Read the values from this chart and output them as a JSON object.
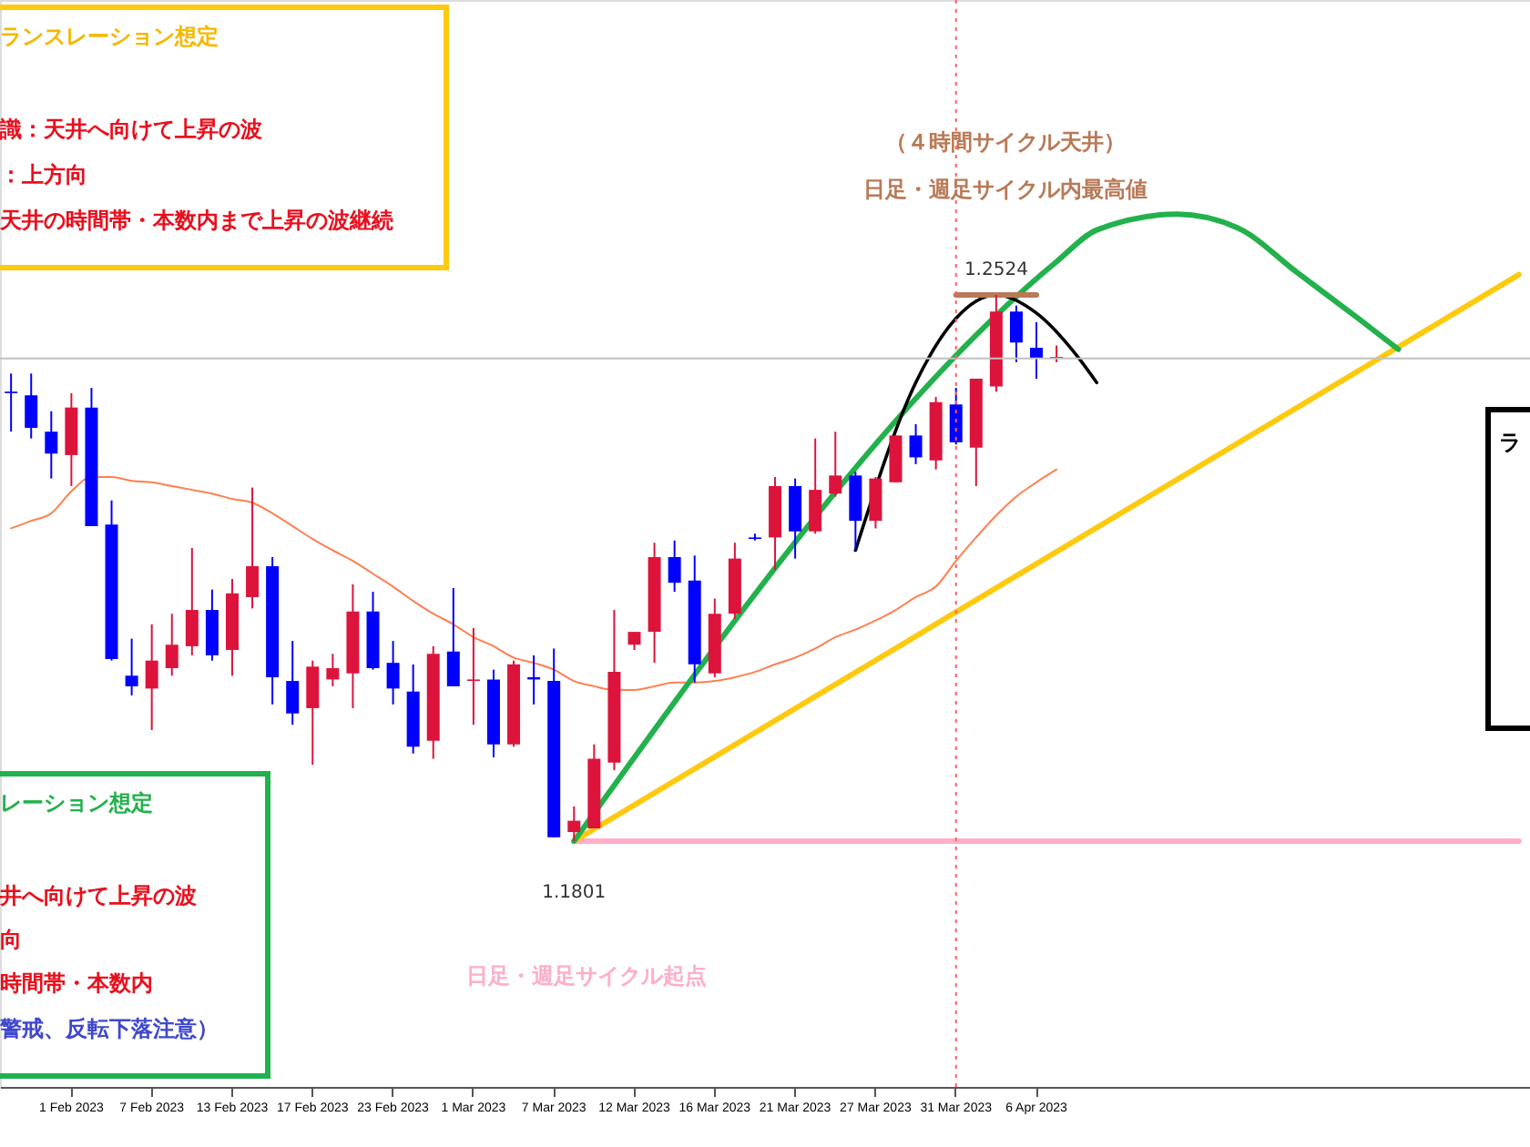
{
  "chart_data": {
    "type": "candlestick",
    "categories": [
      null,
      null,
      null,
      "1 Feb 2023",
      null,
      null,
      null,
      "7 Feb 2023",
      null,
      null,
      null,
      "13 Feb 2023",
      null,
      null,
      null,
      "17 Feb 2023",
      null,
      null,
      null,
      "23 Feb 2023",
      null,
      null,
      null,
      "1 Mar 2023",
      null,
      null,
      null,
      "7 Mar 2023",
      null,
      null,
      null,
      "12 Mar 2023",
      null,
      null,
      null,
      "16 Mar 2023",
      null,
      null,
      null,
      "21 Mar 2023",
      null,
      null,
      null,
      "27 Mar 2023",
      null,
      null,
      null,
      "31 Mar 2023",
      null,
      null,
      null,
      "6 Apr 2023",
      null,
      null,
      null,
      null,
      null,
      null,
      null,
      null,
      null,
      null,
      null,
      null,
      null,
      null,
      null,
      null,
      null,
      null,
      null,
      null,
      null,
      null,
      null,
      null
    ],
    "ohlc": [
      [
        1.2396,
        1.242,
        1.2343,
        1.2394
      ],
      [
        1.2391,
        1.242,
        1.2334,
        1.2348
      ],
      [
        1.2343,
        1.237,
        1.2281,
        1.2314
      ],
      [
        1.2312,
        1.2394,
        1.2271,
        1.2375
      ],
      [
        1.2375,
        1.2401,
        1.2218,
        1.2218
      ],
      [
        1.222,
        1.2252,
        1.204,
        1.2042
      ],
      [
        1.202,
        1.2069,
        1.1994,
        1.2006
      ],
      [
        1.2003,
        1.2088,
        1.1948,
        1.204
      ],
      [
        1.203,
        1.2102,
        1.202,
        1.2061
      ],
      [
        1.2059,
        1.2189,
        1.2047,
        1.2107
      ],
      [
        1.2107,
        1.2134,
        1.204,
        1.2047
      ],
      [
        1.2054,
        1.2148,
        1.202,
        1.2129
      ],
      [
        1.2124,
        1.2269,
        1.2109,
        1.2165
      ],
      [
        1.2165,
        1.2177,
        1.1982,
        1.2018
      ],
      [
        1.2013,
        1.2066,
        1.1955,
        1.197
      ],
      [
        1.1977,
        1.204,
        1.1902,
        1.2032
      ],
      [
        1.2015,
        1.2049,
        1.2006,
        1.203
      ],
      [
        1.2023,
        1.2141,
        1.1977,
        1.2105
      ],
      [
        1.2105,
        1.2131,
        1.2028,
        1.203
      ],
      [
        1.2037,
        1.2066,
        1.1982,
        1.2003
      ],
      [
        1.1999,
        1.2035,
        1.1917,
        1.1926
      ],
      [
        1.1934,
        1.2059,
        1.191,
        1.2049
      ],
      [
        1.2052,
        1.2136,
        1.2006,
        1.2006
      ],
      [
        1.2013,
        1.2083,
        1.1955,
        1.2015
      ],
      [
        1.2015,
        1.2028,
        1.1912,
        1.1929
      ],
      [
        1.1929,
        1.204,
        1.1926,
        1.2035
      ],
      [
        1.2018,
        1.2047,
        1.1982,
        1.2015
      ],
      [
        1.2013,
        1.2056,
        1.1806,
        1.1806
      ],
      [
        1.1813,
        1.1847,
        1.1801,
        1.1828
      ],
      [
        1.1818,
        1.1929,
        1.1818,
        1.191
      ],
      [
        1.1905,
        1.2107,
        1.1895,
        1.2025
      ],
      [
        1.2061,
        1.2078,
        1.2054,
        1.2078
      ],
      [
        1.2078,
        1.2196,
        1.2037,
        1.2177
      ],
      [
        1.2177,
        1.2199,
        1.2131,
        1.2143
      ],
      [
        1.2146,
        1.2179,
        1.2011,
        1.2035
      ],
      [
        1.2023,
        1.2122,
        1.2018,
        1.2102
      ],
      [
        1.2102,
        1.2196,
        1.2095,
        1.2175
      ],
      [
        1.2203,
        1.2208,
        1.2199,
        1.2201
      ],
      [
        1.2203,
        1.2283,
        1.216,
        1.2271
      ],
      [
        1.2271,
        1.2281,
        1.2175,
        1.2211
      ],
      [
        1.2211,
        1.2334,
        1.2208,
        1.2266
      ],
      [
        1.2261,
        1.2343,
        1.2257,
        1.2285
      ],
      [
        1.2285,
        1.229,
        1.2186,
        1.2225
      ],
      [
        1.2225,
        1.2283,
        1.2215,
        1.2281
      ],
      [
        1.2276,
        1.2338,
        1.2276,
        1.2338
      ],
      [
        1.2338,
        1.2353,
        1.23,
        1.2309
      ],
      [
        1.2305,
        1.2389,
        1.2293,
        1.2382
      ],
      [
        1.2379,
        1.2401,
        1.2326,
        1.2329
      ],
      [
        1.2322,
        1.2413,
        1.2271,
        1.2413
      ],
      [
        1.2403,
        1.2524,
        1.2396,
        1.2502
      ],
      [
        1.2502,
        1.251,
        1.2435,
        1.2461
      ],
      [
        1.2454,
        1.2488,
        1.2413,
        1.244
      ],
      [
        1.244,
        1.2457,
        1.2435,
        1.2442
      ],
      null,
      null,
      null,
      null,
      null,
      null,
      null,
      null,
      null,
      null,
      null,
      null,
      null,
      null,
      null,
      null,
      null,
      null,
      null,
      null,
      null,
      null,
      null
    ],
    "colors": [
      "#0000ff",
      "#0000ff",
      "#0000ff",
      "#dc143c",
      "#0000ff",
      "#0000ff",
      "#0000ff",
      "#dc143c",
      "#dc143c",
      "#dc143c",
      "#0000ff",
      "#dc143c",
      "#dc143c",
      "#0000ff",
      "#0000ff",
      "#dc143c",
      "#dc143c",
      "#dc143c",
      "#0000ff",
      "#0000ff",
      "#0000ff",
      "#dc143c",
      "#0000ff",
      "#dc143c",
      "#0000ff",
      "#dc143c",
      "#0000ff",
      "#0000ff",
      "#dc143c",
      "#dc143c",
      "#dc143c",
      "#dc143c",
      "#dc143c",
      "#0000ff",
      "#0000ff",
      "#dc143c",
      "#dc143c",
      "#0000ff",
      "#dc143c",
      "#0000ff",
      "#dc143c",
      "#dc143c",
      "#0000ff",
      "#dc143c",
      "#dc143c",
      "#0000ff",
      "#dc143c",
      "#0000ff",
      "#dc143c",
      "#dc143c",
      "#0000ff",
      "#0000ff",
      "#dc143c",
      null,
      null,
      null,
      null,
      null,
      null,
      null,
      null,
      null,
      null,
      null,
      null,
      null,
      null,
      null,
      null,
      null,
      null,
      null,
      null,
      null,
      null,
      null
    ],
    "series": [
      {
        "type": "line",
        "color": "#ff7f50",
        "values": [
          1.2215,
          1.2225,
          1.2235,
          1.2264,
          1.2283,
          1.2283,
          1.2278,
          1.2276,
          1.2271,
          1.2266,
          1.2261,
          1.2254,
          1.2249,
          1.2235,
          1.2218,
          1.2201,
          1.2186,
          1.2172,
          1.2155,
          1.2138,
          1.2119,
          1.2102,
          1.2088,
          1.2071,
          1.2059,
          1.2044,
          1.2037,
          1.2028,
          1.2013,
          1.2006,
          1.2001,
          1.2001,
          1.2006,
          1.2011,
          1.2011,
          1.2013,
          1.2018,
          1.2025,
          1.2035,
          1.2044,
          1.2056,
          1.2071,
          1.2081,
          1.2093,
          1.2107,
          1.2124,
          1.2138,
          1.2172,
          1.2203,
          1.2232,
          1.2257,
          1.2276,
          1.2293,
          null,
          null,
          null,
          null,
          null,
          null,
          null,
          null,
          null,
          null,
          null,
          null,
          null,
          null,
          null,
          null,
          null,
          null,
          null,
          null,
          null,
          null,
          null
        ]
      },
      {
        "type": "line",
        "color": "#ffaec9",
        "values": [
          null,
          null,
          null,
          null,
          null,
          null,
          null,
          null,
          null,
          null,
          null,
          null,
          null,
          null,
          null,
          null,
          null,
          null,
          null,
          null,
          null,
          null,
          null,
          null,
          null,
          null,
          null,
          null,
          1.1801,
          null,
          null,
          null,
          null,
          null,
          null,
          null,
          null,
          null,
          null,
          null,
          null,
          null,
          null,
          null,
          null,
          null,
          null,
          null,
          null,
          null,
          null,
          null,
          null,
          null,
          null,
          null,
          null,
          null,
          null,
          null,
          null,
          null,
          null,
          null,
          null,
          null,
          null,
          null,
          null,
          null,
          null,
          null,
          null,
          null,
          null,
          1.1801
        ]
      },
      {
        "type": "line",
        "color": "#ffc90e",
        "values": [
          null,
          null,
          null,
          null,
          null,
          null,
          null,
          null,
          null,
          null,
          null,
          null,
          null,
          null,
          null,
          null,
          null,
          null,
          null,
          null,
          null,
          null,
          null,
          null,
          null,
          null,
          null,
          null,
          1.1801,
          null,
          null,
          null,
          null,
          null,
          null,
          null,
          null,
          null,
          null,
          null,
          null,
          null,
          null,
          null,
          null,
          null,
          null,
          null,
          null,
          null,
          null,
          null,
          null,
          null,
          null,
          null,
          null,
          null,
          null,
          null,
          null,
          null,
          null,
          null,
          null,
          null,
          null,
          null,
          null,
          null,
          null,
          null,
          null,
          null,
          null,
          1.2551
        ]
      },
      {
        "type": "line",
        "color": "#22b14c",
        "values": [
          null,
          null,
          null,
          null,
          null,
          null,
          null,
          null,
          null,
          null,
          null,
          null,
          null,
          null,
          null,
          null,
          null,
          null,
          null,
          null,
          null,
          null,
          null,
          null,
          null,
          null,
          null,
          null,
          1.1801,
          null,
          null,
          null,
          null,
          null,
          null,
          null,
          null,
          null,
          null,
          null,
          null,
          null,
          null,
          null,
          null,
          null,
          null,
          null,
          null,
          null,
          null,
          null,
          1.2568,
          null,
          1.261,
          null,
          null,
          null,
          1.2631,
          null,
          null,
          1.2613,
          null,
          null,
          1.2553,
          null,
          null,
          1.2493,
          null,
          1.2452,
          null,
          null,
          null,
          null,
          null,
          null
        ]
      },
      {
        "type": "line",
        "color": "#000000",
        "values": [
          null,
          null,
          null,
          null,
          null,
          null,
          null,
          null,
          null,
          null,
          null,
          null,
          null,
          null,
          null,
          null,
          null,
          null,
          null,
          null,
          null,
          null,
          null,
          null,
          null,
          null,
          null,
          null,
          null,
          null,
          null,
          null,
          null,
          null,
          null,
          null,
          null,
          null,
          null,
          null,
          null,
          null,
          1.2186,
          null,
          null,
          1.2408,
          null,
          1.2493,
          null,
          1.2524,
          null,
          1.25,
          null,
          1.2444,
          1.2408,
          null,
          null,
          null,
          null,
          null,
          null,
          null,
          null,
          null,
          null,
          null,
          null,
          null,
          null,
          null,
          null,
          null,
          null,
          null,
          null,
          null
        ]
      },
      {
        "type": "line",
        "color": "#b97a57",
        "values": [
          null,
          null,
          null,
          null,
          null,
          null,
          null,
          null,
          null,
          null,
          null,
          null,
          null,
          null,
          null,
          null,
          null,
          null,
          null,
          null,
          null,
          null,
          null,
          null,
          null,
          null,
          null,
          null,
          null,
          null,
          null,
          null,
          null,
          null,
          null,
          null,
          null,
          null,
          null,
          null,
          null,
          null,
          null,
          null,
          null,
          null,
          null,
          1.2524,
          null,
          null,
          null,
          1.2524,
          null,
          null,
          null,
          null,
          null,
          null,
          null,
          null,
          null,
          null,
          null,
          null,
          null,
          null,
          null,
          null,
          null,
          null,
          null,
          null,
          null,
          null,
          null,
          null
        ]
      }
    ],
    "ref_lines": [
      {
        "axis": "y",
        "value": 1.244,
        "color": "#c0c0c0",
        "line_style": "solid"
      },
      {
        "axis": "x",
        "value": "31 Mar 2023",
        "color": "#ff6060",
        "line_style": "dotted"
      }
    ],
    "annotations": [
      "ランスレーション想定",
      "識：天井へ向けて上昇の波",
      "：上方向",
      "天井の時間帯・本数内まで上昇の波継続",
      "レーション想定",
      "井へ向けて上昇の波",
      "向",
      "時間帯・本数内",
      "警戒、反転下落注意）",
      "（４時間サイクル天井）",
      "日足・週足サイクル内最高値",
      {
        "text": "1.2524",
        "y": 1.2524
      },
      {
        "text": "1.1801",
        "y": 1.1801
      },
      "日足・週足サイクル起点",
      "ラ"
    ],
    "tick_labels": "x"
  }
}
